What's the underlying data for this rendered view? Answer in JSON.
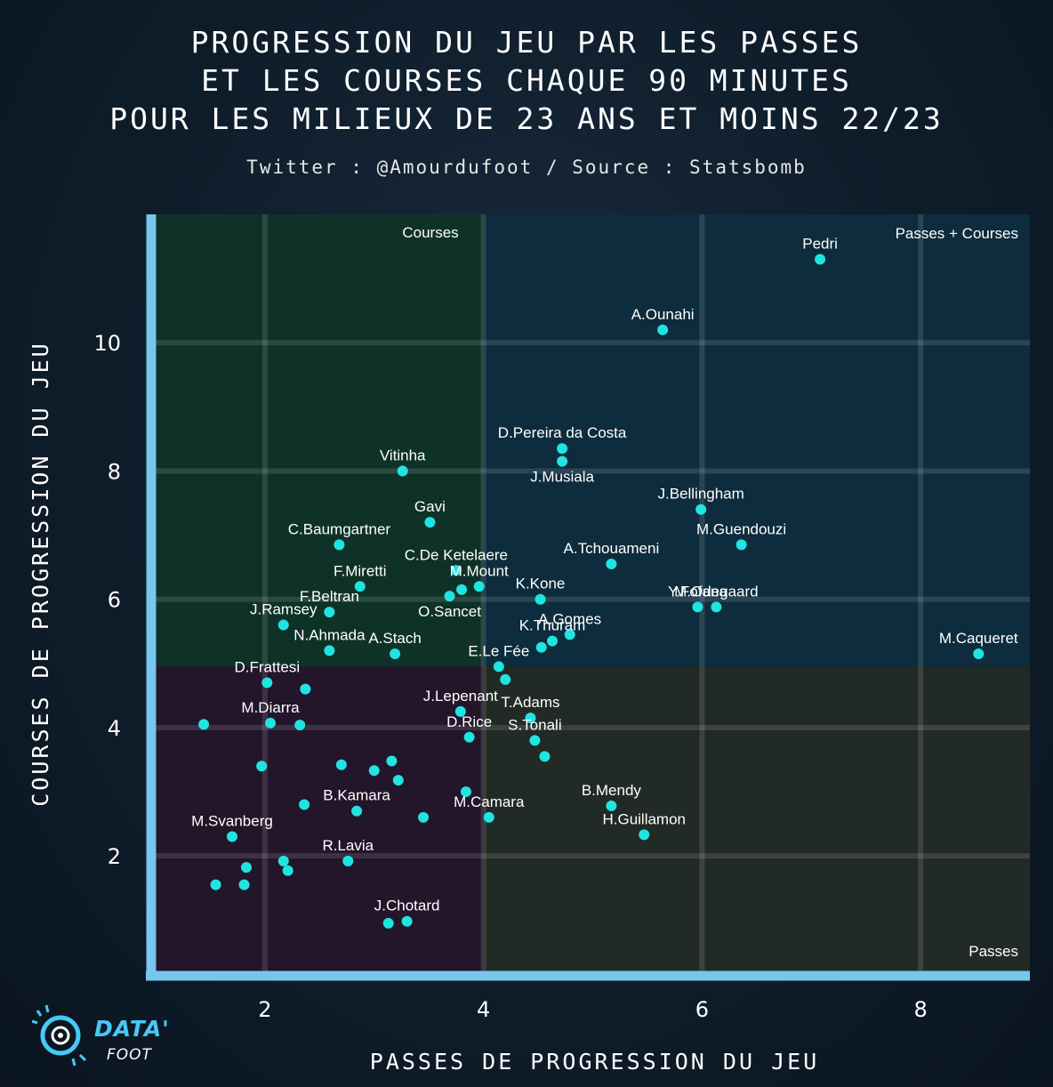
{
  "title_lines": [
    "PROGRESSION DU JEU PAR LES PASSES",
    "ET LES COURSES CHAQUE 90 MINUTES",
    "POUR LES MILIEUX DE 23 ANS ET MOINS 22/23"
  ],
  "subtitle": "Twitter : @Amourdufoot / Source : Statsbomb",
  "logo": {
    "data": "DATA'",
    "foot": "FOOT"
  },
  "colors": {
    "point": "#20e4e1",
    "axis": "#77c6ee",
    "q_courses": "#0f3228",
    "q_passes_courses": "#0d2c3d",
    "q_low": "#23152a",
    "q_passes": "#222a25"
  },
  "chart_data": {
    "type": "scatter",
    "xlabel": "PASSES DE PROGRESSION DU JEU",
    "ylabel": "COURSES DE PROGRESSION DU JEU",
    "xlim": [
      1.0,
      9.0
    ],
    "ylim": [
      0.2,
      12.0
    ],
    "xticks": [
      2,
      4,
      6,
      8
    ],
    "yticks": [
      2,
      4,
      6,
      8,
      10
    ],
    "x_threshold": 4.0,
    "y_threshold": 4.95,
    "quadrant_labels": {
      "top_left": "Courses",
      "top_right": "Passes + Courses",
      "bottom_right": "Passes"
    },
    "points": [
      {
        "x": 7.08,
        "y": 11.3,
        "label": "Pedri"
      },
      {
        "x": 5.64,
        "y": 10.2,
        "label": "A.Ounahi"
      },
      {
        "x": 4.72,
        "y": 8.35,
        "label": "D.Pereira da Costa"
      },
      {
        "x": 4.72,
        "y": 8.15,
        "label": "J.Musiala"
      },
      {
        "x": 3.26,
        "y": 8.0,
        "label": "Vitinha"
      },
      {
        "x": 5.99,
        "y": 7.4,
        "label": "J.Bellingham"
      },
      {
        "x": 3.51,
        "y": 7.2,
        "label": "Gavi"
      },
      {
        "x": 6.36,
        "y": 6.85,
        "label": "M.Guendouzi"
      },
      {
        "x": 2.68,
        "y": 6.85,
        "label": "C.Baumgartner"
      },
      {
        "x": 5.17,
        "y": 6.55,
        "label": "A.Tchouameni"
      },
      {
        "x": 3.75,
        "y": 6.45,
        "label": "C.De Ketelaere"
      },
      {
        "x": 2.87,
        "y": 6.2,
        "label": "F.Miretti"
      },
      {
        "x": 3.96,
        "y": 6.2,
        "label": "M.Mount"
      },
      {
        "x": 3.8,
        "y": 6.15,
        "label": ""
      },
      {
        "x": 3.69,
        "y": 6.05,
        "label": "O.Sancet"
      },
      {
        "x": 4.52,
        "y": 6.0,
        "label": "K.Kone"
      },
      {
        "x": 5.96,
        "y": 5.88,
        "label": "Y.Fofana"
      },
      {
        "x": 6.13,
        "y": 5.88,
        "label": "M.Odegaard"
      },
      {
        "x": 2.59,
        "y": 5.8,
        "label": "F.Beltran"
      },
      {
        "x": 2.17,
        "y": 5.6,
        "label": "J.Ramsey"
      },
      {
        "x": 4.79,
        "y": 5.45,
        "label": "A.Gomes"
      },
      {
        "x": 4.63,
        "y": 5.35,
        "label": "K.Thuram"
      },
      {
        "x": 8.53,
        "y": 5.15,
        "label": "M.Caqueret"
      },
      {
        "x": 2.59,
        "y": 5.2,
        "label": "N.Ahmada"
      },
      {
        "x": 3.19,
        "y": 5.15,
        "label": "A.Stach"
      },
      {
        "x": 4.53,
        "y": 5.25,
        "label": ""
      },
      {
        "x": 4.14,
        "y": 4.95,
        "label": "E.Le Fée"
      },
      {
        "x": 4.2,
        "y": 4.75,
        "label": ""
      },
      {
        "x": 2.02,
        "y": 4.7,
        "label": "D.Frattesi"
      },
      {
        "x": 2.37,
        "y": 4.6,
        "label": ""
      },
      {
        "x": 3.79,
        "y": 4.25,
        "label": "J.Lepenant"
      },
      {
        "x": 4.43,
        "y": 4.15,
        "label": "T.Adams"
      },
      {
        "x": 1.44,
        "y": 4.05,
        "label": ""
      },
      {
        "x": 2.05,
        "y": 4.07,
        "label": "M.Diarra"
      },
      {
        "x": 2.32,
        "y": 4.04,
        "label": ""
      },
      {
        "x": 3.87,
        "y": 3.85,
        "label": "D.Rice"
      },
      {
        "x": 4.47,
        "y": 3.8,
        "label": "S.Tonali"
      },
      {
        "x": 4.56,
        "y": 3.55,
        "label": ""
      },
      {
        "x": 1.97,
        "y": 3.4,
        "label": ""
      },
      {
        "x": 2.7,
        "y": 3.42,
        "label": ""
      },
      {
        "x": 3.16,
        "y": 3.48,
        "label": ""
      },
      {
        "x": 3.0,
        "y": 3.33,
        "label": ""
      },
      {
        "x": 3.22,
        "y": 3.18,
        "label": ""
      },
      {
        "x": 3.84,
        "y": 3.0,
        "label": ""
      },
      {
        "x": 2.36,
        "y": 2.8,
        "label": ""
      },
      {
        "x": 2.84,
        "y": 2.7,
        "label": "B.Kamara"
      },
      {
        "x": 5.17,
        "y": 2.78,
        "label": "B.Mendy"
      },
      {
        "x": 4.05,
        "y": 2.6,
        "label": "M.Camara"
      },
      {
        "x": 3.45,
        "y": 2.6,
        "label": ""
      },
      {
        "x": 1.7,
        "y": 2.3,
        "label": "M.Svanberg"
      },
      {
        "x": 5.47,
        "y": 2.33,
        "label": "H.Guillamon"
      },
      {
        "x": 2.76,
        "y": 1.92,
        "label": "R.Lavia"
      },
      {
        "x": 2.17,
        "y": 1.92,
        "label": ""
      },
      {
        "x": 1.83,
        "y": 1.82,
        "label": ""
      },
      {
        "x": 2.21,
        "y": 1.77,
        "label": ""
      },
      {
        "x": 1.55,
        "y": 1.55,
        "label": ""
      },
      {
        "x": 1.81,
        "y": 1.55,
        "label": ""
      },
      {
        "x": 3.3,
        "y": 0.98,
        "label": "J.Chotard"
      },
      {
        "x": 3.13,
        "y": 0.95,
        "label": ""
      }
    ]
  }
}
